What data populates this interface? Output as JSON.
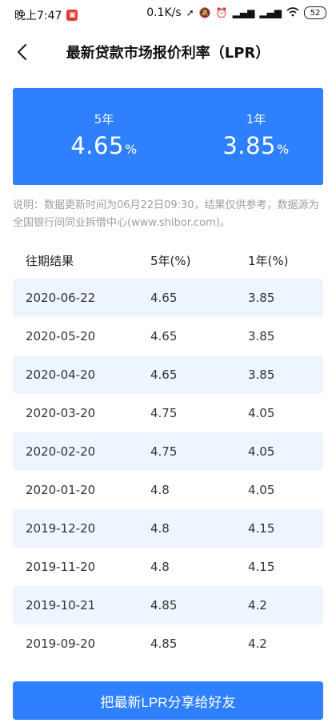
{
  "status_bar": {
    "time": "晚上7:47",
    "speed": "0.1K/s",
    "battery": "52"
  },
  "header": {
    "title": "最新贷款市场报价利率（LPR）"
  },
  "rates": {
    "five_year": {
      "label": "5年",
      "value": "4.65",
      "unit": "%"
    },
    "one_year": {
      "label": "1年",
      "value": "3.85",
      "unit": "%"
    }
  },
  "note": "说明：数据更新时间为06月22日09:30，结果仅供参考，数据源为全国银行间同业拆借中心(www.shibor.com)。",
  "table": {
    "headers": [
      "往期结果",
      "5年(%)",
      "1年(%)"
    ],
    "rows": [
      {
        "date": "2020-06-22",
        "five": "4.65",
        "one": "3.85"
      },
      {
        "date": "2020-05-20",
        "five": "4.65",
        "one": "3.85"
      },
      {
        "date": "2020-04-20",
        "five": "4.65",
        "one": "3.85"
      },
      {
        "date": "2020-03-20",
        "five": "4.75",
        "one": "4.05"
      },
      {
        "date": "2020-02-20",
        "five": "4.75",
        "one": "4.05"
      },
      {
        "date": "2020-01-20",
        "five": "4.8",
        "one": "4.05"
      },
      {
        "date": "2019-12-20",
        "five": "4.8",
        "one": "4.15"
      },
      {
        "date": "2019-11-20",
        "five": "4.8",
        "one": "4.15"
      },
      {
        "date": "2019-10-21",
        "five": "4.85",
        "one": "4.2"
      },
      {
        "date": "2019-09-20",
        "five": "4.85",
        "one": "4.2"
      }
    ]
  },
  "share_button": "把最新LPR分享给好友",
  "colors": {
    "accent": "#2f80ff",
    "row_alt": "#edf5ff"
  }
}
